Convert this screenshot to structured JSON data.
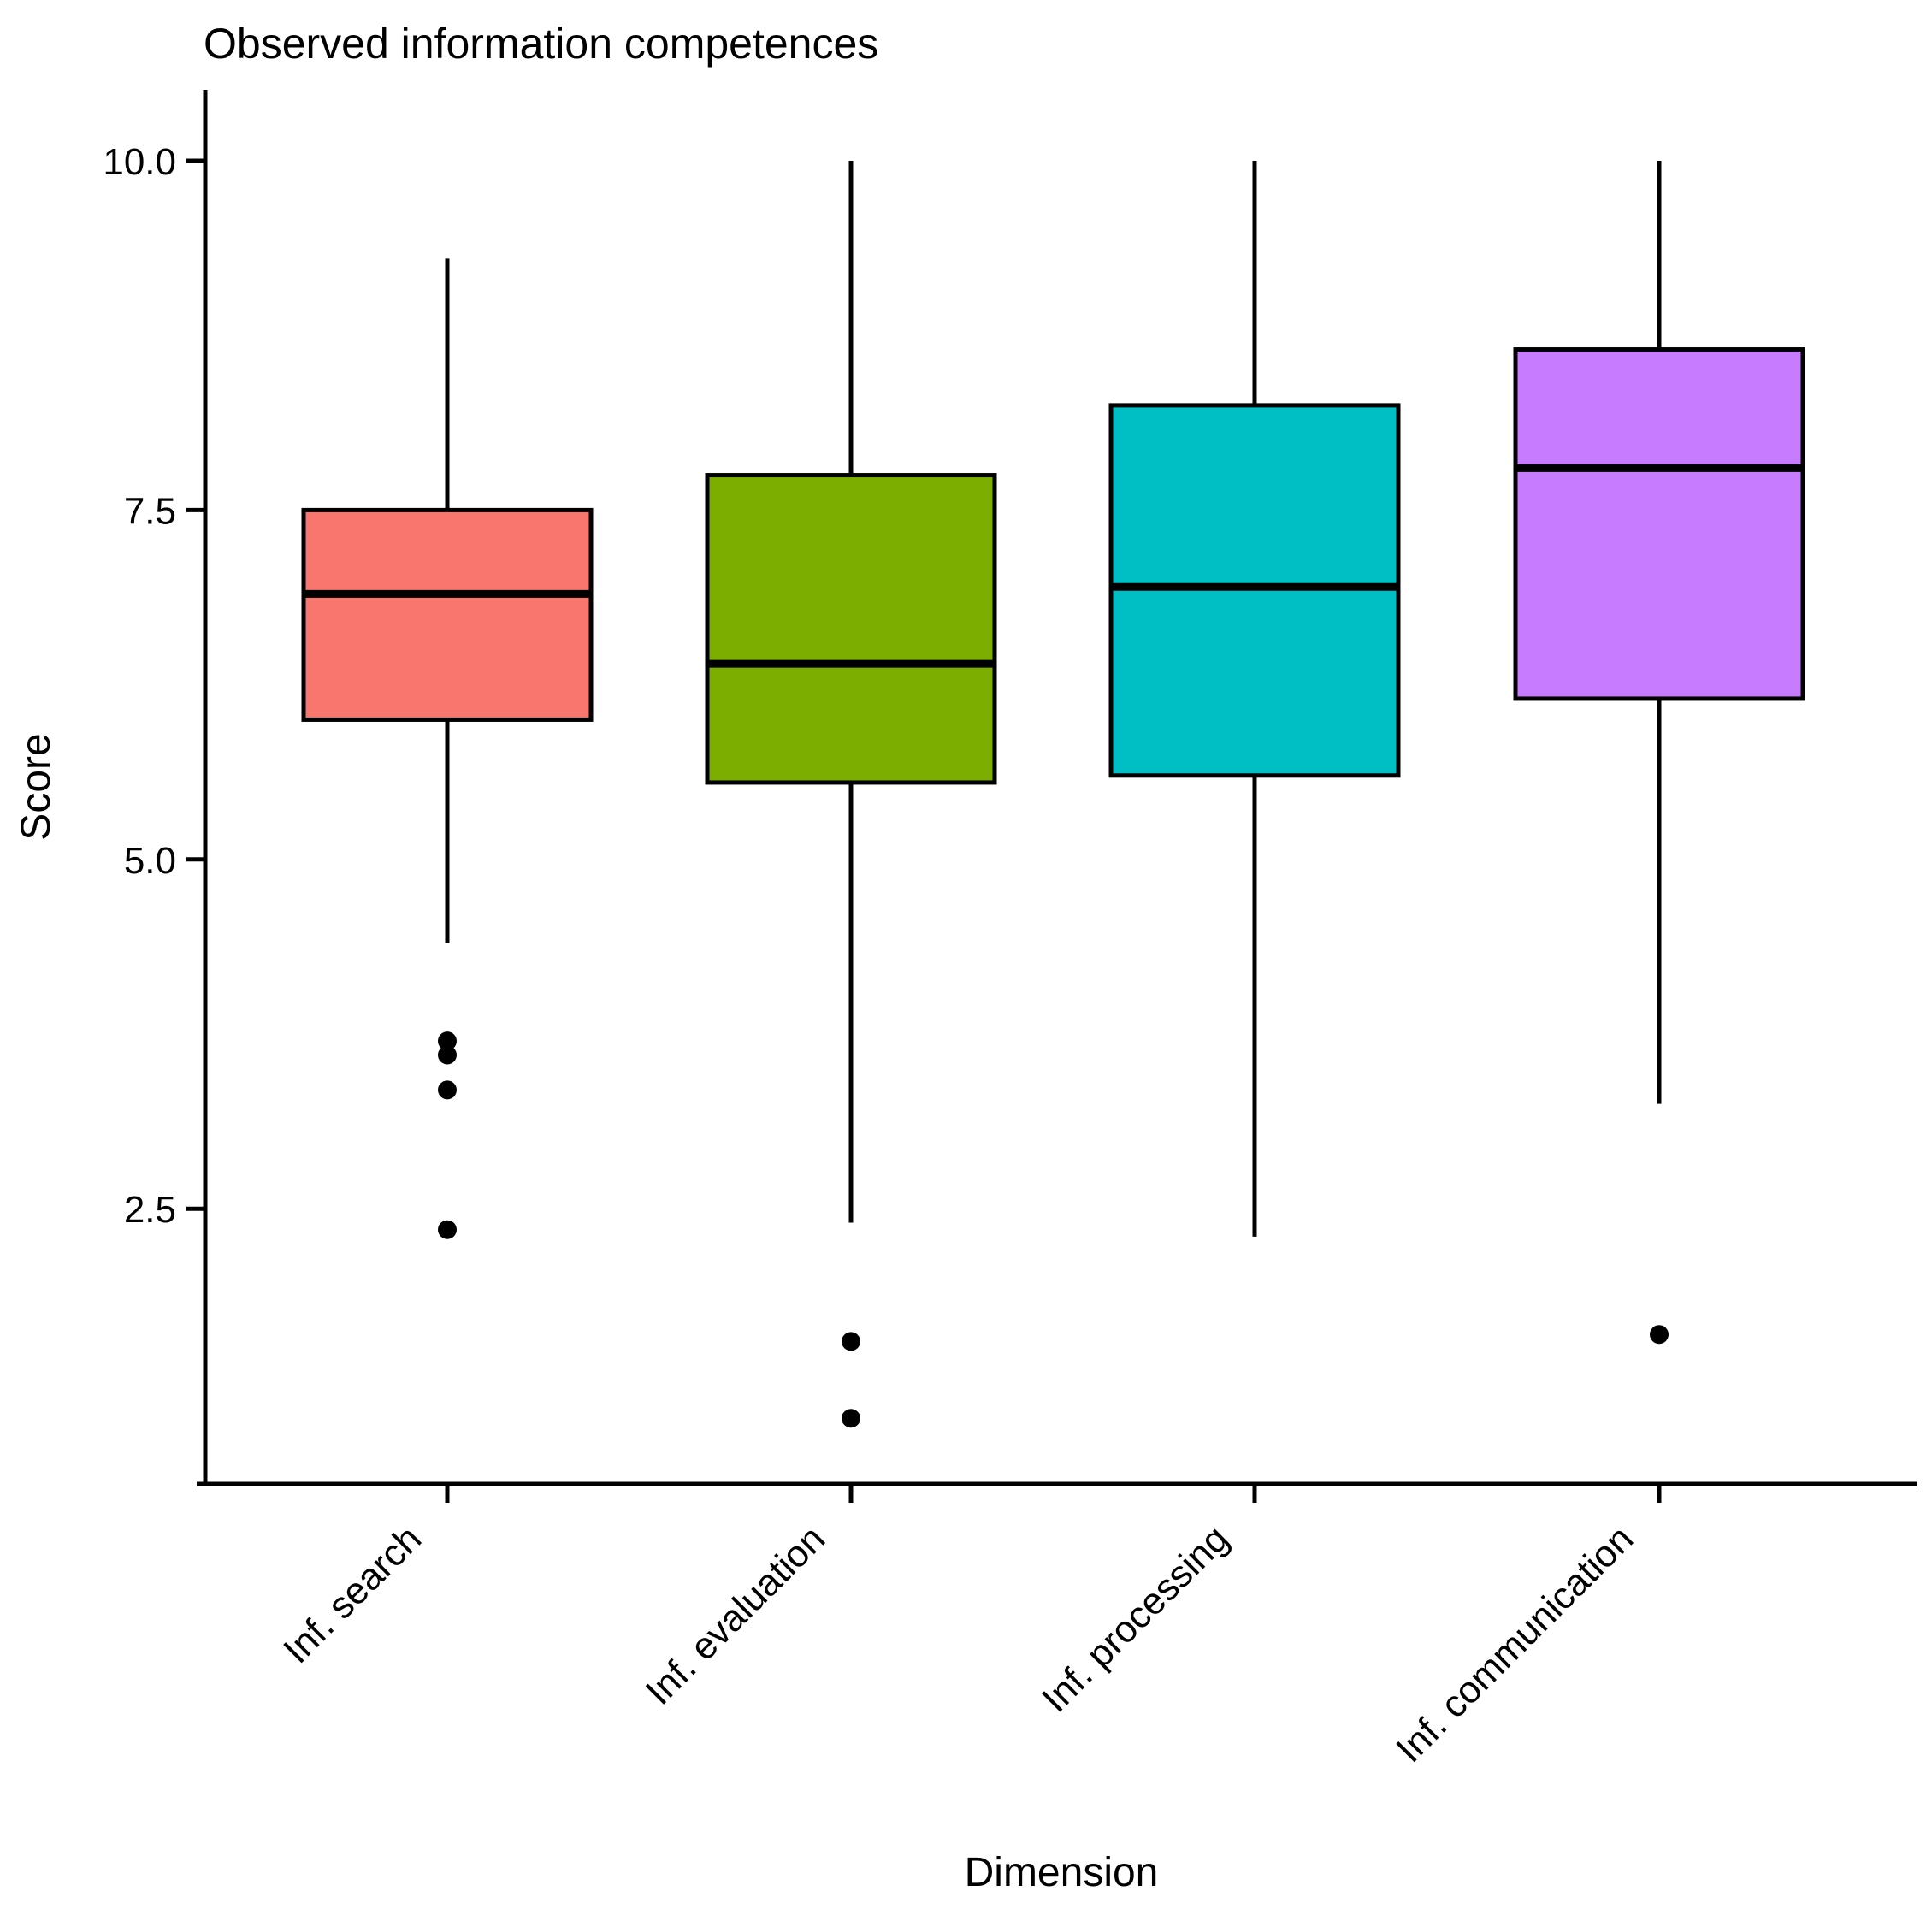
{
  "title": "Observed information competences",
  "x_axis": {
    "label": "Dimension"
  },
  "y_axis": {
    "label": "Score",
    "tick_labels": [
      "10.0",
      "7.5",
      "5.0",
      "2.5"
    ]
  },
  "colors": {
    "box_border": "#000000",
    "median_line": "#000000",
    "whisker": "#000000",
    "outlier": "#000000",
    "axis_line": "#000000",
    "text": "#000000"
  },
  "chart_data": {
    "type": "boxplot",
    "title": "Observed information competences",
    "xlabel": "Dimension",
    "ylabel": "Score",
    "ylim": [
      0.5,
      10.6
    ],
    "yticks": [
      10.0,
      7.5,
      5.0,
      2.5
    ],
    "ytick_labels": [
      "10.0",
      "7.5",
      "5.0",
      "2.5"
    ],
    "grid": false,
    "legend": "none",
    "categories": [
      "Inf. search",
      "Inf. evaluation",
      "Inf. processing",
      "Inf. communication"
    ],
    "series": [
      {
        "name": "Inf. search",
        "fill_color": "#F8766D",
        "whisker_low": 4.4,
        "q1": 6.0,
        "median": 6.9,
        "q3": 7.5,
        "whisker_high": 9.3,
        "outliers": [
          3.7,
          3.6,
          3.35,
          2.35
        ]
      },
      {
        "name": "Inf. evaluation",
        "fill_color": "#7CAE00",
        "whisker_low": 2.4,
        "q1": 5.55,
        "median": 6.4,
        "q3": 7.75,
        "whisker_high": 10.0,
        "outliers": [
          1.55,
          1.0
        ]
      },
      {
        "name": "Inf. processing",
        "fill_color": "#00BFC4",
        "whisker_low": 2.3,
        "q1": 5.6,
        "median": 6.95,
        "q3": 8.25,
        "whisker_high": 10.0,
        "outliers": []
      },
      {
        "name": "Inf. communication",
        "fill_color": "#C77CFF",
        "whisker_low": 3.25,
        "q1": 6.15,
        "median": 7.8,
        "q3": 8.65,
        "whisker_high": 10.0,
        "outliers": [
          1.6
        ]
      }
    ]
  }
}
